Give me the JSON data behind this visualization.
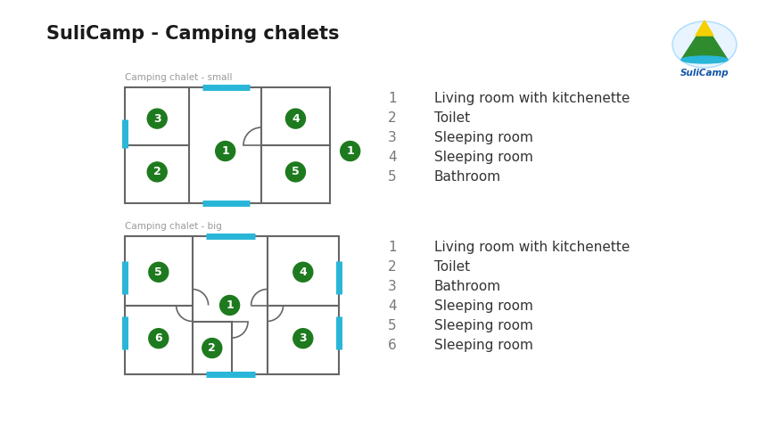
{
  "title": "SuliCamp - Camping chalets",
  "bg_color": "#ffffff",
  "green_color": "#1e7a1e",
  "cyan_color": "#29b6d8",
  "wall_color": "#666666",
  "small_chalet": {
    "label": "Camping chalet - small",
    "legend": [
      {
        "num": "1",
        "text": "Living room with kitchenette"
      },
      {
        "num": "2",
        "text": "Toilet"
      },
      {
        "num": "3",
        "text": "Sleeping room"
      },
      {
        "num": "4",
        "text": "Sleeping room"
      },
      {
        "num": "5",
        "text": "Bathroom"
      }
    ]
  },
  "big_chalet": {
    "label": "Camping chalet - big",
    "legend": [
      {
        "num": "1",
        "text": "Living room with kitchenette"
      },
      {
        "num": "2",
        "text": "Toilet"
      },
      {
        "num": "3",
        "text": "Bathroom"
      },
      {
        "num": "4",
        "text": "Sleeping room"
      },
      {
        "num": "5",
        "text": "Sleeping room"
      },
      {
        "num": "6",
        "text": "Sleeping room"
      }
    ]
  }
}
